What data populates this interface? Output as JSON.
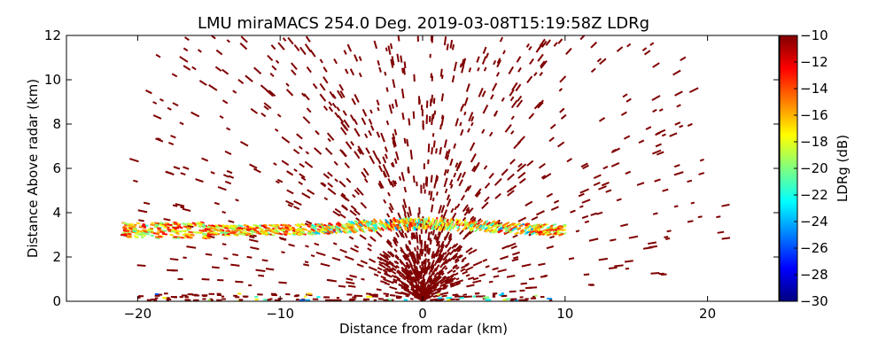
{
  "chart_data": {
    "type": "heatmap",
    "title": "LMU miraMACS 254.0 Deg. 2019-03-08T15:19:58Z  LDRg",
    "xlabel": "Distance from radar (km)",
    "ylabel": "Distance Above radar  (km)",
    "xlim": [
      -25,
      25
    ],
    "ylim": [
      0,
      12
    ],
    "xticks": [
      -20,
      -10,
      0,
      10,
      20
    ],
    "yticks": [
      0,
      2,
      4,
      6,
      8,
      10,
      12
    ],
    "grid": false,
    "colorbar": {
      "label": "LDRg (dB)",
      "range": [
        -30,
        -10
      ],
      "ticks": [
        -30,
        -28,
        -26,
        -24,
        -22,
        -20,
        -18,
        -16,
        -14,
        -12,
        -10
      ],
      "colormap": "jet",
      "colors": [
        "#00007f",
        "#0000ff",
        "#007fff",
        "#00ffff",
        "#7fff7f",
        "#ffff00",
        "#ff7f00",
        "#ff0000",
        "#7f0000"
      ]
    },
    "features": [
      {
        "name": "melting layer band",
        "x_range": [
          -21,
          10
        ],
        "y": 3.2,
        "ldr_range": [
          -26,
          -12
        ]
      },
      {
        "name": "near-radar clutter",
        "x_range": [
          -3,
          3
        ],
        "y_range": [
          0,
          3.5
        ],
        "ldr": -10
      },
      {
        "name": "sparse scan noise",
        "x_range": [
          -22,
          22
        ],
        "y_range": [
          0,
          12
        ],
        "ldr": -10
      }
    ]
  }
}
